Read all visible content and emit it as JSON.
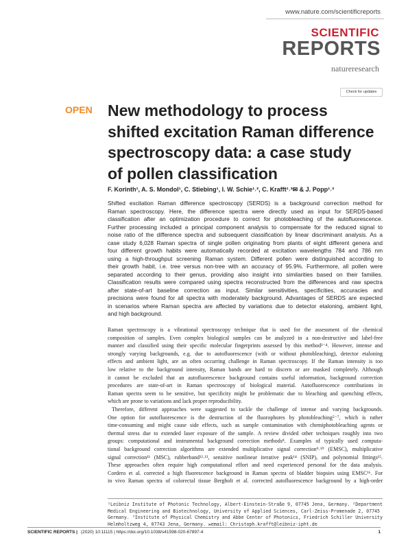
{
  "header": {
    "url": "www.nature.com/scientificreports",
    "journal_top": "SCIENTIFIC",
    "journal_bottom": "REPORTS",
    "publisher": "natureresearch",
    "update_button": "Check for updates"
  },
  "article": {
    "access": "OPEN",
    "title_lines": [
      "New methodology to process",
      "shifted excitation Raman difference",
      "spectroscopy data: a case study",
      "of pollen classification"
    ],
    "authors": "F. Korinth¹, A. S. Mondol¹, C. Stiebing¹, I. W. Schie¹˒², C. Krafft¹˒³✉ & J. Popp¹˒³",
    "abstract_lines": [
      "Shifted excitation Raman difference spectroscopy (SERDS) is a background correction method for",
      "Raman spectroscopy. Here, the difference spectra were directly used as input for SERDS-based",
      "classification after an optimization procedure to correct for photobleaching of the autofluorescence.",
      "Further processing included a principal component analysis to compensate for the reduced signal to",
      "noise ratio of the difference spectra and subsequent classification by linear discriminant analysis. As a",
      "case study 6,028 Raman spectra of single pollen originating from plants of eight different genera and",
      "four different growth habits were automatically recorded at excitation wavelengths 784 and 786 nm",
      "using a high-throughput screening Raman system. Different pollen were distinguished according to",
      "their growth habit, i.e. tree versus non-tree with an accuracy of 95.9%. Furthermore, all pollen were",
      "separated according to their genus, providing also insight into similarities based on their families.",
      "Classification results were compared using spectra reconstructed from the differences and raw spectra",
      "after state-of-art baseline correction as input. Similar sensitivities, specificities, accuracies and",
      "precisions were found for all spectra with moderately background. Advantages of SERDS are expected",
      "in scenarios where Raman spectra are affected by variations due to detector etaloning, ambient light,",
      "and high background."
    ],
    "body_lines": [
      "Raman spectroscopy is a vibrational spectroscopy technique that is used for the assessment of the chemical",
      "composition of samples. Even complex biological samples can be analyzed in a non-destructive and label-free",
      "manner and classified using their specific molecular fingerprints assessed by this method¹⁻⁴. However, intense and",
      "strongly varying backgrounds, e.g. due to autofluorescence (with or without photobleaching), detector etaloning",
      "effects and ambient light, are an often occurring challenge in Raman spectroscopy. If the Raman intensity is too",
      "low relative to the background intensity, Raman bands are hard to discern or are masked completely. Although",
      "it cannot be excluded that an autofluorescence background contains useful information, background correction",
      "procedures are state-of-art in Raman spectroscopy of biological material. Autofluorescence contributions in",
      "Raman spectra seem to be sensitive, but specificity might be problematic due to bleaching and quenching effects,",
      "which are prone to variations and lack proper reproducibility.",
      "Therefore, different approaches were suggested to tackle the challenge of intense and varying backgrounds.",
      "One option for autofluorescence is the destruction of the fluorophores by photobleaching⁵⁻⁷, which is rather",
      "time-consuming and might cause side effects, such as sample contamination with chemiphotobleaching agents or",
      "thermal stress due to extended laser exposure of the sample. A review divided other techniques roughly into two",
      "groups: computational and instrumental background correction methods⁸. Examples of typically used computa-",
      "tional background correction algorithms are extended multiplicative signal correction⁹˒¹⁰ (EMSC), multiplicative",
      "signal correction¹¹ (MSC), rubberband¹²˒¹³, sensitive nonlinear iterative peak¹⁴ (SNIP), and polynomial fittings¹⁵.",
      "These approaches often require high computational effort and need experienced personal for the data analysis.",
      "Cordero et al. corrected a high fluorescence background in Raman spectra of bladder biopsies using EMSC¹⁶. For",
      "in vivo Raman spectra of colorectal tissue Bergholt et al. corrected autofluorescence background by a high-order"
    ],
    "footnote_lines": [
      "¹Leibniz Institute of Photonic Technology, Albert-Einstein-Straße 9, 07745 Jena, Germany. ²Department of",
      "Medical Engineering and Biotechnology, University of Applied Sciences, Carl-Zeiss-Promenade 2, 07745 Jena,",
      "Germany. ³Institute of Physical Chemistry and Abbe Center of Photonics, Friedrich Schiller University Jena,",
      "Helmholtzweg 4, 07743 Jena, Germany. ✉email: Christoph.krafft@leibniz-ipht.de"
    ]
  },
  "footer": {
    "journal": "SCIENTIFIC REPORTS |",
    "citation": "(2020) 10:11115 | https://doi.org/10.1038/s41598-020-67897-4",
    "page": "1"
  }
}
